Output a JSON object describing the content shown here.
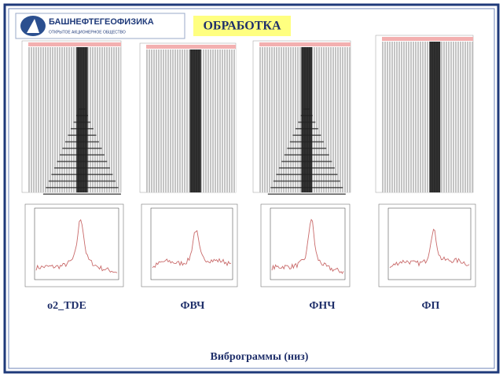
{
  "logo": {
    "name": "БАШНЕФТЕГЕОФИЗИКА",
    "subtitle": "ОТКРЫТОЕ АКЦИОНЕРНОЕ ОБЩЕСТВО"
  },
  "title": "ОБРАБОТКА",
  "panels": [
    {
      "label": "o2_TDE"
    },
    {
      "label": "ФВЧ"
    },
    {
      "label": "ФНЧ"
    },
    {
      "label": "ФП"
    }
  ],
  "caption": "Виброграммы (низ)"
}
